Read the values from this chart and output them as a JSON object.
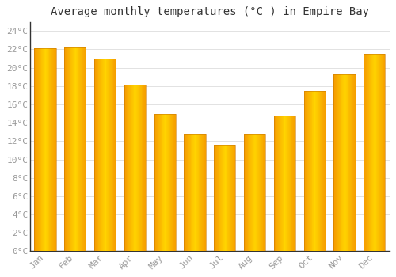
{
  "title": "Average monthly temperatures (°C ) in Empire Bay",
  "months": [
    "Jan",
    "Feb",
    "Mar",
    "Apr",
    "May",
    "Jun",
    "Jul",
    "Aug",
    "Sep",
    "Oct",
    "Nov",
    "Dec"
  ],
  "values": [
    22.1,
    22.2,
    21.0,
    18.2,
    15.0,
    12.8,
    11.6,
    12.8,
    14.8,
    17.5,
    19.3,
    21.5
  ],
  "bar_color_center": "#FFD000",
  "bar_color_edge": "#F59B00",
  "background_color": "#FFFFFF",
  "plot_bg_color": "#FFFFFF",
  "grid_color": "#DDDDDD",
  "ytick_labels": [
    "0°C",
    "2°C",
    "4°C",
    "6°C",
    "8°C",
    "10°C",
    "12°C",
    "14°C",
    "16°C",
    "18°C",
    "20°C",
    "22°C",
    "24°C"
  ],
  "ytick_values": [
    0,
    2,
    4,
    6,
    8,
    10,
    12,
    14,
    16,
    18,
    20,
    22,
    24
  ],
  "ylim": [
    0,
    25
  ],
  "title_fontsize": 10,
  "tick_fontsize": 8,
  "tick_color": "#999999",
  "axis_color": "#555555",
  "font_family": "monospace"
}
